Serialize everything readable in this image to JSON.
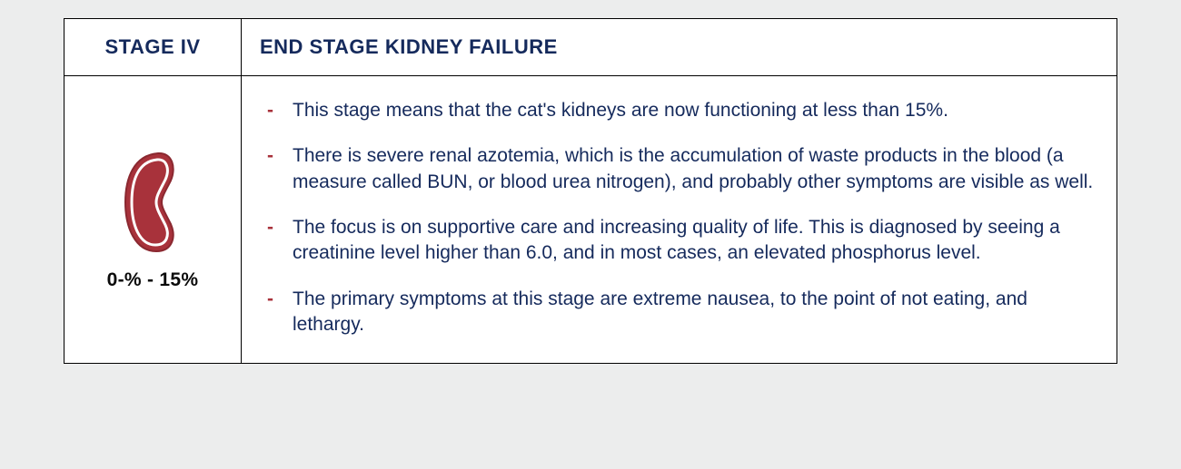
{
  "colors": {
    "text_primary": "#152a5c",
    "bullet_dash": "#a8323b",
    "kidney_fill": "#a8323b",
    "kidney_stroke": "#8a2830",
    "background": "#eceded",
    "card_bg": "#ffffff",
    "border": "#000000"
  },
  "header": {
    "stage_label": "STAGE IV",
    "title": "END STAGE KIDNEY FAILURE"
  },
  "left": {
    "range_text": "0-% - 15%"
  },
  "bullets": [
    "This stage means that the cat's kidneys are now functioning at less than 15%.",
    "There is severe renal azotemia, which is the accumulation of waste products in the blood (a measure called BUN, or blood urea nitrogen), and probably other symptoms are visible as well.",
    "The focus is on supportive care and increasing quality of life. This is diagnosed by seeing a creatinine level higher than 6.0, and in most cases, an elevated phosphorus level.",
    "The primary symptoms at this stage are extreme nausea, to the point of not eating, and lethargy."
  ]
}
